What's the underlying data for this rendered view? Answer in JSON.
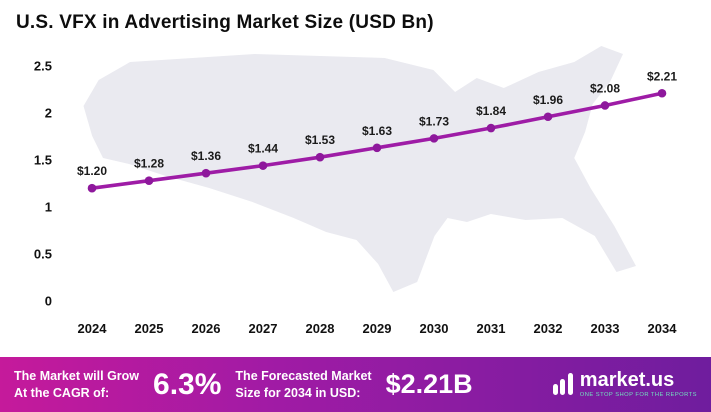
{
  "title": "U.S. VFX in Advertising Market Size (USD Bn)",
  "chart_data": {
    "type": "line",
    "title": "U.S. VFX in Advertising Market Size (USD Bn)",
    "x": [
      2024,
      2025,
      2026,
      2027,
      2028,
      2029,
      2030,
      2031,
      2032,
      2033,
      2034
    ],
    "values": [
      1.2,
      1.28,
      1.36,
      1.44,
      1.53,
      1.63,
      1.73,
      1.84,
      1.96,
      2.08,
      2.21
    ],
    "point_labels": [
      "$1.20",
      "$1.28",
      "$1.36",
      "$1.44",
      "$1.53",
      "$1.63",
      "$1.73",
      "$1.84",
      "$1.96",
      "$2.08",
      "$2.21"
    ],
    "xlabel": "",
    "ylabel": "",
    "ylim": [
      0,
      2.5
    ],
    "yticks": [
      0,
      0.5,
      1,
      1.5,
      2,
      2.5
    ],
    "ytick_labels": [
      "0",
      "0.5",
      "1",
      "1.5",
      "2",
      "2.5"
    ],
    "grid": false,
    "legend": null,
    "line_color": "#9e1ca6",
    "marker_color": "#8e189c"
  },
  "footer": {
    "cagr_label_line1": "The Market will Grow",
    "cagr_label_line2": "At the CAGR of:",
    "cagr_value": "6.3%",
    "forecast_label_line1": "The Forecasted Market",
    "forecast_label_line2": "Size for 2034 in USD:",
    "forecast_value": "$2.21B",
    "brand": "market.us",
    "brand_tagline": "ONE STOP SHOP FOR THE REPORTS",
    "gradient_left": "#c51a9b",
    "gradient_right": "#6f1d9e"
  }
}
